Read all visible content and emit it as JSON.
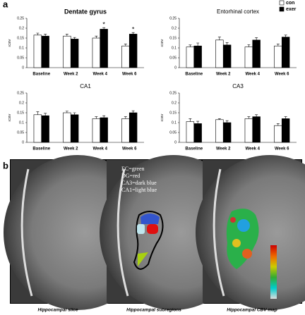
{
  "panel_labels": [
    "a",
    "b"
  ],
  "chart_data": [
    {
      "type": "bar",
      "title": "Dentate gyrus",
      "ylabel": "rCBV",
      "categories": [
        "Baseline",
        "Week 2",
        "Week 4",
        "Week 6"
      ],
      "series": [
        {
          "name": "con",
          "color": "#ffffff",
          "values": [
            0.165,
            0.16,
            0.15,
            0.11
          ],
          "errors": [
            0.01,
            0.01,
            0.01,
            0.01
          ]
        },
        {
          "name": "exer",
          "color": "#000000",
          "values": [
            0.16,
            0.145,
            0.195,
            0.17
          ],
          "errors": [
            0.01,
            0.008,
            0.008,
            0.008
          ]
        }
      ],
      "annotations": [
        {
          "category": "Week 4",
          "text": "*"
        },
        {
          "category": "Week 6",
          "text": "*"
        }
      ],
      "ylim": [
        0,
        0.25
      ],
      "yticks": [
        0,
        0.05,
        0.1,
        0.15,
        0.2,
        0.25
      ]
    },
    {
      "type": "bar",
      "title": "Entorhinal cortex",
      "ylabel": "rCBV",
      "categories": [
        "Baseline",
        "Week 2",
        "Week 4",
        "Week 6"
      ],
      "series": [
        {
          "name": "con",
          "color": "#ffffff",
          "values": [
            0.105,
            0.14,
            0.105,
            0.11
          ],
          "errors": [
            0.01,
            0.015,
            0.012,
            0.01
          ]
        },
        {
          "name": "exer",
          "color": "#000000",
          "values": [
            0.11,
            0.115,
            0.14,
            0.155
          ],
          "errors": [
            0.015,
            0.012,
            0.012,
            0.01
          ]
        }
      ],
      "legend": "upper right",
      "ylim": [
        0,
        0.25
      ],
      "yticks": [
        0,
        0.05,
        0.1,
        0.15,
        0.2,
        0.25
      ]
    },
    {
      "type": "bar",
      "title": "CA1",
      "ylabel": "rCBV",
      "categories": [
        "Baseline",
        "Week 2",
        "Week 4",
        "Week 6"
      ],
      "series": [
        {
          "name": "con",
          "color": "#ffffff",
          "values": [
            0.14,
            0.15,
            0.12,
            0.12
          ],
          "errors": [
            0.015,
            0.008,
            0.01,
            0.01
          ]
        },
        {
          "name": "exer",
          "color": "#000000",
          "values": [
            0.135,
            0.14,
            0.125,
            0.15
          ],
          "errors": [
            0.012,
            0.01,
            0.01,
            0.01
          ]
        }
      ],
      "ylim": [
        0,
        0.25
      ],
      "yticks": [
        0,
        0.05,
        0.1,
        0.15,
        0.2,
        0.25
      ]
    },
    {
      "type": "bar",
      "title": "CA3",
      "ylabel": "rCBV",
      "categories": [
        "Baseline",
        "Week 2",
        "Week 4",
        "Week 6"
      ],
      "series": [
        {
          "name": "con",
          "color": "#ffffff",
          "values": [
            0.105,
            0.115,
            0.12,
            0.085
          ],
          "errors": [
            0.015,
            0.005,
            0.01,
            0.01
          ]
        },
        {
          "name": "exer",
          "color": "#000000",
          "values": [
            0.095,
            0.1,
            0.13,
            0.12
          ],
          "errors": [
            0.012,
            0.01,
            0.01,
            0.01
          ]
        }
      ],
      "ylim": [
        0,
        0.25
      ],
      "yticks": [
        0,
        0.05,
        0.1,
        0.15,
        0.2,
        0.25
      ]
    }
  ],
  "images": [
    {
      "caption": "Hippocampal slice"
    },
    {
      "caption": "Hippocampal subregions",
      "key": [
        "EC=green",
        "DG=red",
        "CA3=dark blue",
        "CA1=light blue"
      ]
    },
    {
      "caption": "Hippocampal CBV map"
    }
  ]
}
